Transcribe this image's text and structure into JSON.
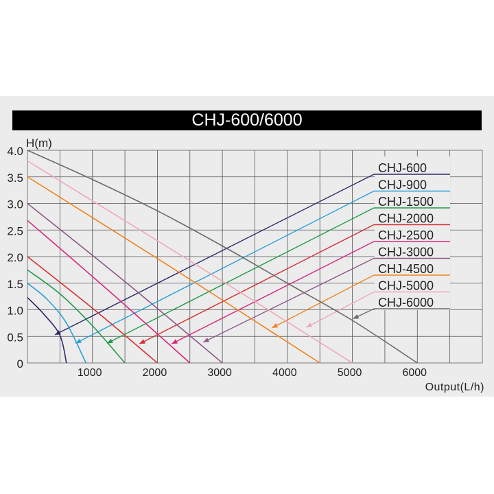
{
  "chart_data": {
    "type": "line",
    "title": "CHJ-600/6000",
    "xlabel": "Output(L/h)",
    "ylabel": "H(m)",
    "xlim": [
      0,
      7000
    ],
    "ylim": [
      0,
      4
    ],
    "grid": true,
    "legend_placement": "top-right",
    "x_ticks": [
      1000,
      2000,
      3000,
      4000,
      5000,
      6000
    ],
    "x_tick_labels": [
      "1000",
      "2000",
      "3000",
      "4000",
      "5000",
      "6000"
    ],
    "y_ticks": [
      0,
      0.5,
      1,
      1.5,
      2,
      2.5,
      3,
      3.5,
      4
    ],
    "y_tick_labels": [
      "0",
      "0.5",
      "1.0",
      "1.5",
      "2.0",
      "2.5",
      "3.0",
      "3.5",
      "4.0"
    ],
    "series": [
      {
        "name": "CHJ-600",
        "color": "#2b2a6b",
        "points": [
          [
            0,
            1.23
          ],
          [
            250,
            0.92
          ],
          [
            500,
            0.52
          ],
          [
            600,
            0
          ]
        ],
        "arrow_to": [
          423,
          0.53
        ]
      },
      {
        "name": "CHJ-900",
        "color": "#2a9fd8",
        "points": [
          [
            0,
            1.5
          ],
          [
            300,
            1.2
          ],
          [
            600,
            0.75
          ],
          [
            900,
            0
          ]
        ],
        "arrow_to": [
          740,
          0.37
        ]
      },
      {
        "name": "CHJ-1500",
        "color": "#1f9a4a",
        "points": [
          [
            0,
            1.75
          ],
          [
            500,
            1.3
          ],
          [
            1000,
            0.7
          ],
          [
            1500,
            0
          ]
        ],
        "arrow_to": [
          1226,
          0.37
        ]
      },
      {
        "name": "CHJ-2000",
        "color": "#d63030",
        "points": [
          [
            0,
            2.0
          ],
          [
            1000,
            1.03
          ],
          [
            2000,
            0
          ]
        ],
        "arrow_to": [
          1723,
          0.36
        ]
      },
      {
        "name": "CHJ-2500",
        "color": "#d8287e",
        "points": [
          [
            0,
            2.68
          ],
          [
            1250,
            1.36
          ],
          [
            2500,
            0
          ]
        ],
        "arrow_to": [
          2220,
          0.36
        ]
      },
      {
        "name": "CHJ-3000",
        "color": "#8a5a85",
        "points": [
          [
            0,
            3.0
          ],
          [
            1500,
            1.53
          ],
          [
            3000,
            0
          ]
        ],
        "arrow_to": [
          2706,
          0.39
        ]
      },
      {
        "name": "CHJ-4500",
        "color": "#f0821e",
        "points": [
          [
            0,
            3.5
          ],
          [
            2250,
            1.77
          ],
          [
            4500,
            0
          ]
        ],
        "arrow_to": [
          3763,
          0.66
        ]
      },
      {
        "name": "CHJ-5000",
        "color": "#f0a8b8",
        "points": [
          [
            0,
            3.8
          ],
          [
            2500,
            1.92
          ],
          [
            5000,
            0
          ]
        ],
        "arrow_to": [
          4292,
          0.67
        ]
      },
      {
        "name": "CHJ-6000",
        "color": "#6b6b6b",
        "points": [
          [
            0,
            4.0
          ],
          [
            1000,
            3.45
          ],
          [
            2000,
            2.86
          ],
          [
            3000,
            2.2
          ],
          [
            4000,
            1.5
          ],
          [
            5000,
            0.8
          ],
          [
            6000,
            0
          ]
        ],
        "arrow_to": [
          5011,
          0.83
        ]
      }
    ]
  }
}
